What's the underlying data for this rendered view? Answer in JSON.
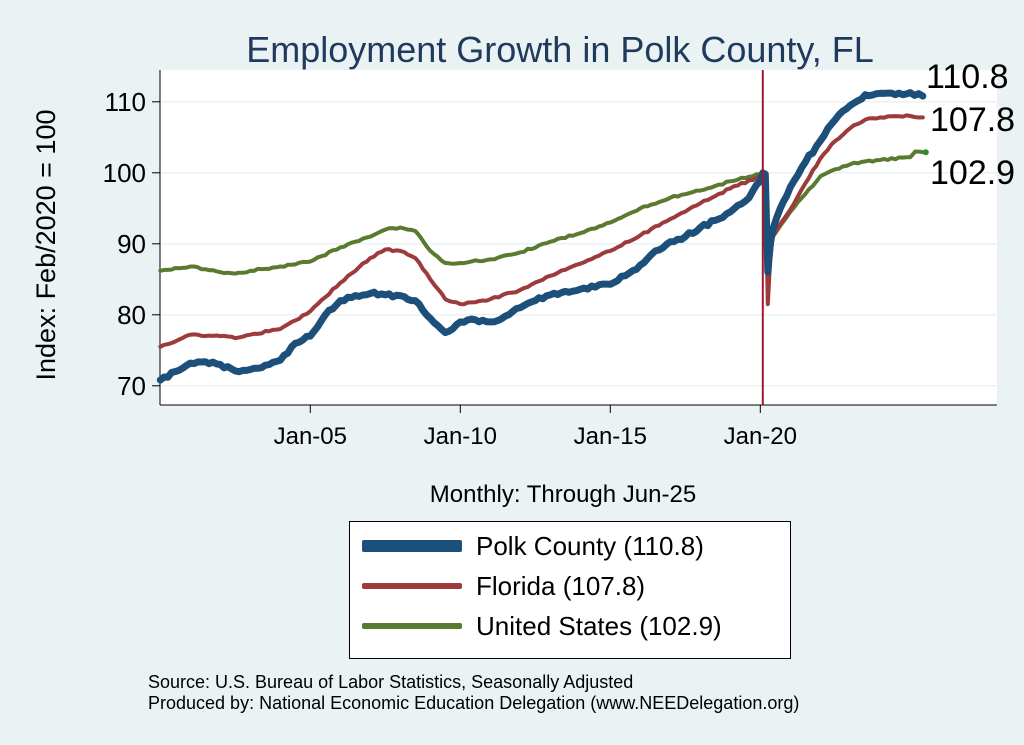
{
  "chart_data": {
    "type": "line",
    "title": "Employment Growth in Polk  County, FL",
    "ylabel": "Index: Feb/2020 = 100",
    "xlabel": "Monthly: Through Jun-25",
    "ylim": [
      70,
      115
    ],
    "y_ticks": [
      "70",
      "80",
      "90",
      "100",
      "110"
    ],
    "x_ticks": [
      "Jan-05",
      "Jan-10",
      "Jan-15",
      "Jan-20"
    ],
    "x_range": [
      "Jan-00",
      "Jun-25"
    ],
    "vertical_line": "Feb-20",
    "grid": true,
    "legend_position": "bottom",
    "series": [
      {
        "name": "Polk  County (110.8)",
        "color": "#1c4f7a",
        "end_label": "110.8",
        "points": [
          [
            "Jan-00",
            70.8
          ],
          [
            "Jul-00",
            72.0
          ],
          [
            "Jan-01",
            73.2
          ],
          [
            "Jul-01",
            73.4
          ],
          [
            "Jan-02",
            73.0
          ],
          [
            "Jul-02",
            72.1
          ],
          [
            "Jan-03",
            72.3
          ],
          [
            "Jul-03",
            72.9
          ],
          [
            "Jan-04",
            73.6
          ],
          [
            "Jul-04",
            76.0
          ],
          [
            "Jan-05",
            77.0
          ],
          [
            "Jul-05",
            80.0
          ],
          [
            "Jan-06",
            82.0
          ],
          [
            "Jul-06",
            82.7
          ],
          [
            "Jan-07",
            83.0
          ],
          [
            "Jul-07",
            82.8
          ],
          [
            "Jan-08",
            82.7
          ],
          [
            "Jul-08",
            82.0
          ],
          [
            "Jan-09",
            79.5
          ],
          [
            "Jul-09",
            77.5
          ],
          [
            "Jan-10",
            79.0
          ],
          [
            "Jul-10",
            79.3
          ],
          [
            "Jan-11",
            79.0
          ],
          [
            "Jul-11",
            79.8
          ],
          [
            "Jan-12",
            81.0
          ],
          [
            "Jul-12",
            82.0
          ],
          [
            "Jan-13",
            82.8
          ],
          [
            "Jul-13",
            83.3
          ],
          [
            "Jan-14",
            83.6
          ],
          [
            "Jul-14",
            83.9
          ],
          [
            "Jan-15",
            84.3
          ],
          [
            "Jul-15",
            85.5
          ],
          [
            "Jan-16",
            87.0
          ],
          [
            "Jul-16",
            89.0
          ],
          [
            "Jan-17",
            90.3
          ],
          [
            "Jul-17",
            91.0
          ],
          [
            "Jan-18",
            92.3
          ],
          [
            "Jul-18",
            93.3
          ],
          [
            "Jan-19",
            94.5
          ],
          [
            "Jul-19",
            96.0
          ],
          [
            "Jan-20",
            98.8
          ],
          [
            "Feb-20",
            100.0
          ],
          [
            "Mar-20",
            99.8
          ],
          [
            "Apr-20",
            86.0
          ],
          [
            "May-20",
            90.0
          ],
          [
            "Jun-20",
            92.0
          ],
          [
            "Sep-20",
            95.0
          ],
          [
            "Jan-21",
            98.0
          ],
          [
            "Jul-21",
            101.5
          ],
          [
            "Jan-22",
            104.5
          ],
          [
            "Jul-22",
            107.5
          ],
          [
            "Jan-23",
            109.5
          ],
          [
            "Jul-23",
            111.0
          ],
          [
            "Jan-24",
            111.2
          ],
          [
            "Jul-24",
            111.0
          ],
          [
            "Jan-25",
            111.3
          ],
          [
            "Jun-25",
            110.8
          ]
        ]
      },
      {
        "name": "Florida (107.8)",
        "color": "#9c3a3c",
        "end_label": "107.8",
        "points": [
          [
            "Jan-00",
            75.5
          ],
          [
            "Jan-01",
            77.2
          ],
          [
            "Jan-02",
            77.0
          ],
          [
            "Jul-02",
            76.7
          ],
          [
            "Jan-03",
            77.2
          ],
          [
            "Jan-04",
            78.0
          ],
          [
            "Jan-05",
            80.5
          ],
          [
            "Jan-06",
            84.5
          ],
          [
            "Jan-07",
            88.0
          ],
          [
            "Jul-07",
            89.2
          ],
          [
            "Jan-08",
            89.0
          ],
          [
            "Jul-08",
            88.0
          ],
          [
            "Jan-09",
            85.0
          ],
          [
            "Jul-09",
            82.2
          ],
          [
            "Jan-10",
            81.5
          ],
          [
            "Jan-11",
            82.2
          ],
          [
            "Jan-12",
            83.5
          ],
          [
            "Jan-13",
            85.5
          ],
          [
            "Jan-14",
            87.2
          ],
          [
            "Jan-15",
            89.0
          ],
          [
            "Jan-16",
            91.2
          ],
          [
            "Jan-17",
            93.5
          ],
          [
            "Jan-18",
            95.7
          ],
          [
            "Jan-19",
            97.8
          ],
          [
            "Jan-20",
            99.5
          ],
          [
            "Feb-20",
            100.0
          ],
          [
            "Mar-20",
            99.5
          ],
          [
            "Apr-20",
            81.5
          ],
          [
            "May-20",
            88.0
          ],
          [
            "Jun-20",
            91.0
          ],
          [
            "Jan-21",
            94.8
          ],
          [
            "Jul-21",
            98.5
          ],
          [
            "Jan-22",
            102.0
          ],
          [
            "Jul-22",
            104.5
          ],
          [
            "Jan-23",
            106.3
          ],
          [
            "Jul-23",
            107.5
          ],
          [
            "Jan-24",
            107.8
          ],
          [
            "Jan-25",
            108.0
          ],
          [
            "Jun-25",
            107.8
          ]
        ]
      },
      {
        "name": "United States (102.9)",
        "color": "#5a7a30",
        "end_label": "102.9",
        "points": [
          [
            "Jan-00",
            86.2
          ],
          [
            "Jan-01",
            86.8
          ],
          [
            "Jan-02",
            86.0
          ],
          [
            "Jul-02",
            85.8
          ],
          [
            "Jan-03",
            86.2
          ],
          [
            "Jan-04",
            86.8
          ],
          [
            "Jan-05",
            87.5
          ],
          [
            "Jan-06",
            89.5
          ],
          [
            "Jan-07",
            91.0
          ],
          [
            "Jul-07",
            92.0
          ],
          [
            "Jan-08",
            92.3
          ],
          [
            "Jul-08",
            91.8
          ],
          [
            "Jan-09",
            89.0
          ],
          [
            "Jul-09",
            87.3
          ],
          [
            "Jan-10",
            87.3
          ],
          [
            "Jan-11",
            87.8
          ],
          [
            "Jan-12",
            88.8
          ],
          [
            "Jan-13",
            90.3
          ],
          [
            "Jan-14",
            91.5
          ],
          [
            "Jan-15",
            93.0
          ],
          [
            "Jan-16",
            95.0
          ],
          [
            "Jan-17",
            96.5
          ],
          [
            "Jan-18",
            97.5
          ],
          [
            "Jan-19",
            98.8
          ],
          [
            "Jan-20",
            99.8
          ],
          [
            "Feb-20",
            100.0
          ],
          [
            "Mar-20",
            99.0
          ],
          [
            "Apr-20",
            86.0
          ],
          [
            "May-20",
            88.5
          ],
          [
            "Jun-20",
            91.0
          ],
          [
            "Jan-21",
            94.5
          ],
          [
            "Jul-21",
            97.0
          ],
          [
            "Jan-22",
            99.5
          ],
          [
            "Jul-22",
            100.5
          ],
          [
            "Jan-23",
            101.2
          ],
          [
            "Jul-23",
            101.6
          ],
          [
            "Jan-24",
            101.8
          ],
          [
            "Jan-25",
            102.2
          ],
          [
            "Mar-25",
            103.0
          ],
          [
            "Jun-25",
            102.9
          ]
        ]
      }
    ]
  },
  "source_lines": [
    "Source: U.S. Bureau of Labor Statistics, Seasonally Adjusted",
    "Produced by: National Economic Education Delegation (www.NEEDelegation.org)"
  ]
}
